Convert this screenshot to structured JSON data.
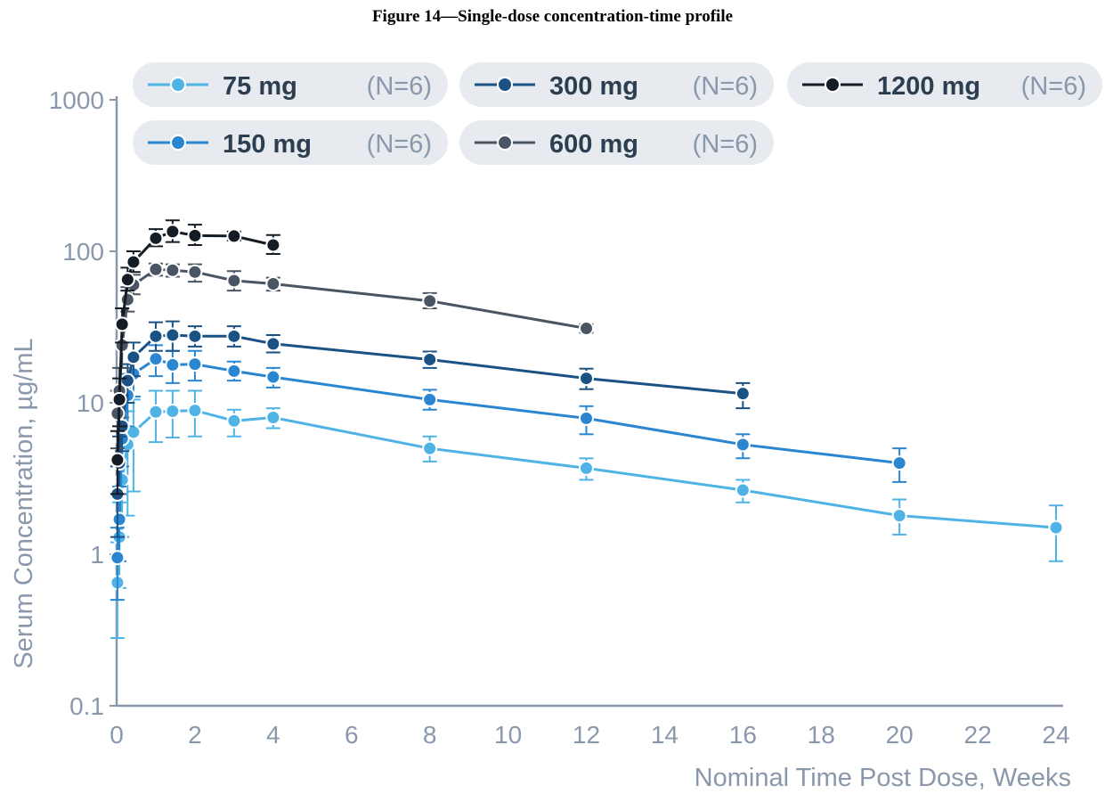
{
  "figure_title": "Figure 14—Single-dose concentration-time profile",
  "chart_data": {
    "type": "line",
    "xlabel": "Nominal Time Post Dose, Weeks",
    "ylabel": "Serum Concentration, µg/mL",
    "xlim": [
      0,
      24
    ],
    "ylim": [
      0.1,
      1000
    ],
    "yscale": "log",
    "x_ticks": [
      "0",
      "2",
      "4",
      "6",
      "8",
      "10",
      "12",
      "14",
      "16",
      "18",
      "20",
      "22",
      "24"
    ],
    "y_ticks": [
      "0.1",
      "1",
      "10",
      "100",
      "1000"
    ],
    "grid": false,
    "legend_position": "top",
    "series": [
      {
        "name": "75 mg",
        "n_label": "(N=6)",
        "color": "#4fb3e6",
        "x": [
          0.02,
          0.07,
          0.14,
          0.28,
          0.43,
          1,
          1.43,
          2,
          3,
          4,
          8,
          12,
          16,
          20,
          24
        ],
        "y": [
          0.65,
          1.3,
          3.1,
          5.3,
          6.4,
          8.7,
          8.8,
          8.9,
          7.6,
          8.0,
          5.0,
          3.7,
          2.65,
          1.8,
          1.5
        ],
        "err_low": [
          0.28,
          0.6,
          1.3,
          1.8,
          2.6,
          5.5,
          5.9,
          6.0,
          6.0,
          6.8,
          4.1,
          3.1,
          2.2,
          1.35,
          0.9
        ],
        "err_high": [
          1.2,
          2.2,
          5.0,
          8.8,
          10.5,
          12.0,
          12.0,
          12.0,
          9.0,
          9.2,
          6.0,
          4.3,
          3.1,
          2.3,
          2.1
        ]
      },
      {
        "name": "150 mg",
        "n_label": "(N=6)",
        "color": "#2a86d0",
        "x": [
          0.02,
          0.07,
          0.14,
          0.28,
          0.43,
          1,
          1.43,
          2,
          3,
          4,
          8,
          12,
          16,
          20
        ],
        "y": [
          0.95,
          1.7,
          5.8,
          11.2,
          15.5,
          19.5,
          17.8,
          18.0,
          16.2,
          14.8,
          10.5,
          7.9,
          5.3,
          4.0
        ],
        "err_low": [
          0.5,
          0.9,
          3.8,
          7.0,
          11.0,
          15.0,
          13.5,
          14.0,
          14.0,
          12.6,
          9.0,
          6.2,
          4.3,
          3.0
        ],
        "err_high": [
          1.5,
          2.8,
          8.0,
          15.5,
          20.0,
          24.0,
          22.0,
          22.0,
          18.7,
          17.0,
          12.2,
          9.5,
          6.2,
          5.0
        ]
      },
      {
        "name": "300 mg",
        "n_label": "(N=6)",
        "color": "#1a5286",
        "x": [
          0.02,
          0.07,
          0.14,
          0.28,
          0.43,
          1,
          1.43,
          2,
          3,
          4,
          8,
          12,
          16
        ],
        "y": [
          2.5,
          4.0,
          7.0,
          14.0,
          20.0,
          27.5,
          28.0,
          27.5,
          27.5,
          24.5,
          19.3,
          14.5,
          11.5
        ],
        "err_low": [
          1.3,
          2.5,
          4.8,
          10.0,
          15.0,
          22.0,
          22.0,
          23.5,
          23.5,
          21.5,
          17.0,
          12.3,
          9.2
        ],
        "err_high": [
          3.8,
          6.0,
          10.0,
          18.0,
          25.0,
          34.0,
          34.5,
          32.0,
          32.0,
          28.0,
          21.8,
          16.8,
          13.5
        ]
      },
      {
        "name": "600 mg",
        "n_label": "(N=6)",
        "color": "#4a5563",
        "x": [
          0.02,
          0.07,
          0.14,
          0.28,
          0.43,
          1,
          1.43,
          2,
          3,
          4,
          8,
          12
        ],
        "y": [
          8.5,
          12.0,
          24.0,
          48.0,
          60.0,
          76.0,
          75.0,
          73.0,
          64.0,
          61.0,
          47.0,
          31.0
        ],
        "err_low": [
          5.0,
          8.0,
          17.0,
          40.0,
          52.0,
          69.0,
          68.0,
          63.0,
          55.0,
          55.0,
          42.0,
          29.0
        ],
        "err_high": [
          12.0,
          17.0,
          32.0,
          58.0,
          70.0,
          83.0,
          82.0,
          82.0,
          74.0,
          67.0,
          53.0,
          33.0
        ]
      },
      {
        "name": "1200 mg",
        "n_label": "(N=6)",
        "color": "#141c26",
        "x": [
          0.02,
          0.07,
          0.14,
          0.28,
          0.43,
          1,
          1.43,
          2,
          3,
          4
        ],
        "y": [
          4.2,
          10.5,
          33.0,
          65.0,
          85.0,
          122.0,
          135.0,
          127.0,
          126.0,
          110.0
        ],
        "err_low": [
          2.5,
          7.0,
          25.0,
          55.0,
          73.0,
          108.0,
          115.0,
          110.0,
          118.0,
          96.0
        ],
        "err_high": [
          6.5,
          14.5,
          42.0,
          78.0,
          100.0,
          140.0,
          160.0,
          150.0,
          135.0,
          128.0
        ]
      }
    ]
  }
}
